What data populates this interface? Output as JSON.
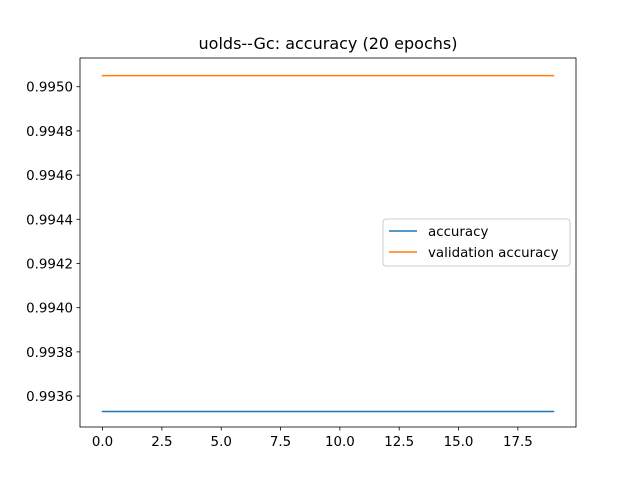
{
  "chart_data": {
    "type": "line",
    "title": "uolds--Gc: accuracy (20 epochs)",
    "xlabel": "",
    "ylabel": "",
    "x": [
      0,
      1,
      2,
      3,
      4,
      5,
      6,
      7,
      8,
      9,
      10,
      11,
      12,
      13,
      14,
      15,
      16,
      17,
      18,
      19
    ],
    "xlim": [
      -0.95,
      19.95
    ],
    "ylim": [
      0.99346,
      0.99513
    ],
    "xticks": [
      0.0,
      2.5,
      5.0,
      7.5,
      10.0,
      12.5,
      15.0,
      17.5
    ],
    "xtick_labels": [
      "0.0",
      "2.5",
      "5.0",
      "7.5",
      "10.0",
      "12.5",
      "15.0",
      "17.5"
    ],
    "yticks": [
      0.9936,
      0.9938,
      0.994,
      0.9942,
      0.9944,
      0.9946,
      0.9948,
      0.995
    ],
    "ytick_labels": [
      "0.9936",
      "0.9938",
      "0.9940",
      "0.9942",
      "0.9944",
      "0.9946",
      "0.9948",
      "0.9950"
    ],
    "grid": false,
    "legend_position": "center-right",
    "series": [
      {
        "name": "accuracy",
        "color": "#1f77b4",
        "values": [
          0.99353,
          0.99353,
          0.99353,
          0.99353,
          0.99353,
          0.99353,
          0.99353,
          0.99353,
          0.99353,
          0.99353,
          0.99353,
          0.99353,
          0.99353,
          0.99353,
          0.99353,
          0.99353,
          0.99353,
          0.99353,
          0.99353,
          0.99353
        ]
      },
      {
        "name": "validation accuracy",
        "color": "#ff7f0e",
        "values": [
          0.99505,
          0.99505,
          0.99505,
          0.99505,
          0.99505,
          0.99505,
          0.99505,
          0.99505,
          0.99505,
          0.99505,
          0.99505,
          0.99505,
          0.99505,
          0.99505,
          0.99505,
          0.99505,
          0.99505,
          0.99505,
          0.99505,
          0.99505
        ]
      }
    ]
  }
}
